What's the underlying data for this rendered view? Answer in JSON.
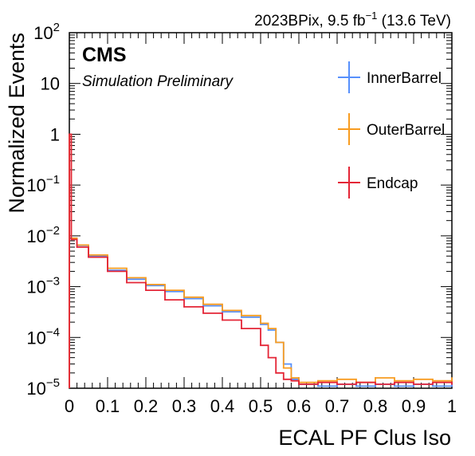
{
  "header": {
    "experiment": "CMS",
    "status": "Simulation Preliminary",
    "lumi_prefix": "2023BPix, 9.5 fb",
    "lumi_exp": "−1",
    "lumi_suffix": " (13.6 TeV)"
  },
  "chart_data": {
    "type": "line",
    "xlabel": "ECAL PF Clus Iso",
    "ylabel": "Normalized Events",
    "xlim": [
      0,
      1
    ],
    "ylim": [
      1e-05,
      100
    ],
    "yscale": "log",
    "x_ticks": [
      "0",
      "0.1",
      "0.2",
      "0.3",
      "0.4",
      "0.5",
      "0.6",
      "0.7",
      "0.8",
      "0.9",
      "1"
    ],
    "y_ticks": [
      {
        "base": "10",
        "exp": "−5",
        "value": 1e-05
      },
      {
        "base": "10",
        "exp": "−4",
        "value": 0.0001
      },
      {
        "base": "10",
        "exp": "−3",
        "value": 0.001
      },
      {
        "base": "10",
        "exp": "−2",
        "value": 0.01
      },
      {
        "base": "10",
        "exp": "−1",
        "value": 0.1
      },
      {
        "base": "1",
        "exp": "",
        "value": 1
      },
      {
        "base": "10",
        "exp": "",
        "value": 10
      },
      {
        "base": "10",
        "exp": "2",
        "value": 100
      }
    ],
    "legend_position": "top-right",
    "series": [
      {
        "name": "InnerBarrel",
        "color": "#5790fc",
        "x": [
          0.0,
          0.005,
          0.02,
          0.05,
          0.1,
          0.15,
          0.2,
          0.25,
          0.3,
          0.35,
          0.4,
          0.45,
          0.5,
          0.52,
          0.54,
          0.56,
          0.58,
          0.6,
          0.65,
          0.7,
          0.75,
          0.8,
          0.85,
          0.9,
          0.95,
          1.0
        ],
        "values": [
          1.0,
          0.009,
          0.0065,
          0.004,
          0.0021,
          0.0014,
          0.00105,
          0.0008,
          0.00058,
          0.00042,
          0.00032,
          0.00025,
          0.00018,
          0.00014,
          8e-05,
          3e-05,
          1.5e-05,
          1.2e-05,
          1.1e-05,
          1.2e-05,
          1.1e-05,
          1.2e-05,
          1.1e-05,
          1.2e-05,
          1.1e-05,
          1.2e-05
        ]
      },
      {
        "name": "OuterBarrel",
        "color": "#f89c20",
        "x": [
          0.0,
          0.005,
          0.02,
          0.05,
          0.1,
          0.15,
          0.2,
          0.25,
          0.3,
          0.35,
          0.4,
          0.45,
          0.5,
          0.52,
          0.54,
          0.56,
          0.58,
          0.6,
          0.65,
          0.7,
          0.75,
          0.8,
          0.85,
          0.9,
          0.95,
          1.0
        ],
        "values": [
          1.0,
          0.009,
          0.0066,
          0.0042,
          0.0023,
          0.0015,
          0.0011,
          0.00085,
          0.00062,
          0.00045,
          0.00034,
          0.00027,
          0.00019,
          0.00015,
          8e-05,
          2.5e-05,
          1.6e-05,
          1.3e-05,
          1.4e-05,
          1.5e-05,
          1.3e-05,
          1.6e-05,
          1.4e-05,
          1.5e-05,
          1.4e-05,
          1.6e-05
        ]
      },
      {
        "name": "Endcap",
        "color": "#e42536",
        "x": [
          0.0,
          0.005,
          0.02,
          0.05,
          0.1,
          0.15,
          0.2,
          0.25,
          0.3,
          0.35,
          0.4,
          0.45,
          0.5,
          0.52,
          0.54,
          0.56,
          0.58,
          0.6,
          0.65,
          0.7,
          0.75,
          0.8,
          0.85,
          0.9,
          0.95,
          1.0
        ],
        "values": [
          1.0,
          0.0085,
          0.006,
          0.0038,
          0.002,
          0.0012,
          0.00085,
          0.00055,
          0.0004,
          0.0003,
          0.00022,
          0.00015,
          7e-05,
          4e-05,
          2e-05,
          1.5e-05,
          1.4e-05,
          1.2e-05,
          1.3e-05,
          1.2e-05,
          1.3e-05,
          1.2e-05,
          1.3e-05,
          1.2e-05,
          1.3e-05,
          1.2e-05
        ]
      }
    ]
  }
}
